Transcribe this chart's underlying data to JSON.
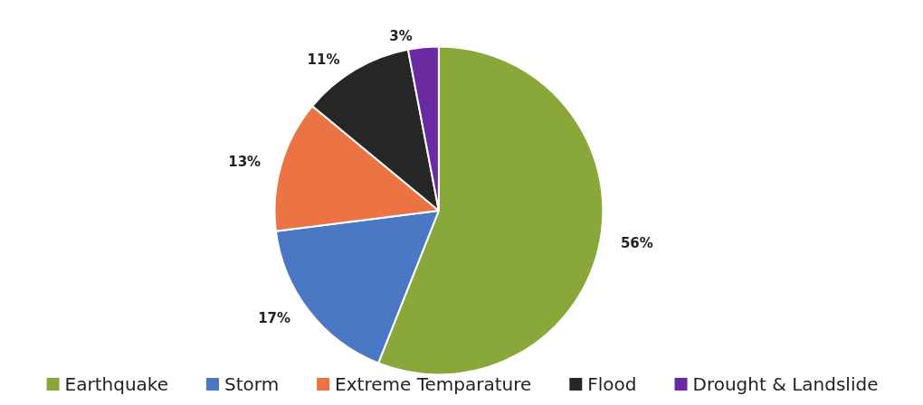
{
  "chart_data": {
    "type": "pie",
    "categories": [
      "Earthquake",
      "Storm",
      "Extreme Temparature",
      "Flood",
      "Drought & Landslide"
    ],
    "values": [
      56,
      17,
      13,
      11,
      3
    ],
    "value_labels": [
      "56%",
      "17%",
      "13%",
      "11%",
      "3%"
    ],
    "colors": [
      "#8aa83a",
      "#4a78c4",
      "#ec7444",
      "#262626",
      "#6a2aa0"
    ],
    "legend": "bottom"
  }
}
